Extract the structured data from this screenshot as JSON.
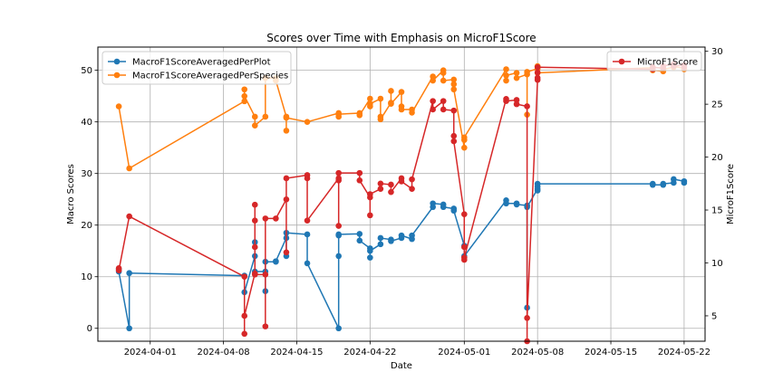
{
  "chart_data": {
    "type": "line",
    "title": "Scores over Time with Emphasis on MicroF1Score",
    "xlabel": "Date",
    "ylabel": "Macro Scores",
    "y2label": "MicroF1Score",
    "xlim": [
      "2024-03-27",
      "2024-05-24"
    ],
    "ylim": [
      -2.5,
      54.5
    ],
    "y2lim": [
      2.6,
      30.4
    ],
    "x_ticks": [
      "2024-04-01",
      "2024-04-08",
      "2024-04-15",
      "2024-04-22",
      "2024-05-01",
      "2024-05-08",
      "2024-05-15",
      "2024-05-22"
    ],
    "y_ticks": [
      0,
      10,
      20,
      30,
      40,
      50
    ],
    "y2_ticks": [
      5,
      10,
      15,
      20,
      25,
      30
    ],
    "grid": true,
    "legend_left": {
      "placement": "top-left",
      "entries": [
        "MacroF1ScoreAveragedPerPlot",
        "MacroF1ScoreAveragedPerSpecies"
      ]
    },
    "legend_right": {
      "placement": "top-right",
      "entries": [
        "MicroF1Score"
      ]
    },
    "series": [
      {
        "name": "MacroF1ScoreAveragedPerPlot",
        "axis": "left",
        "color": "#1f77b4",
        "points": [
          [
            "2024-03-29",
            11.5
          ],
          [
            "2024-03-29",
            11.0
          ],
          [
            "2024-03-30",
            0.0
          ],
          [
            "2024-03-30",
            10.7
          ],
          [
            "2024-04-10",
            10.2
          ],
          [
            "2024-04-10",
            7.0
          ],
          [
            "2024-04-11",
            14.0
          ],
          [
            "2024-04-11",
            16.7
          ],
          [
            "2024-04-11",
            11.0
          ],
          [
            "2024-04-12",
            11.0
          ],
          [
            "2024-04-12",
            7.2
          ],
          [
            "2024-04-12",
            12.9
          ],
          [
            "2024-04-13",
            12.9
          ],
          [
            "2024-04-13",
            13.0
          ],
          [
            "2024-04-14",
            17.5
          ],
          [
            "2024-04-14",
            14.0
          ],
          [
            "2024-04-14",
            18.5
          ],
          [
            "2024-04-16",
            18.2
          ],
          [
            "2024-04-16",
            12.6
          ],
          [
            "2024-04-19",
            0.0
          ],
          [
            "2024-04-19",
            18.0
          ],
          [
            "2024-04-19",
            14.0
          ],
          [
            "2024-04-19",
            18.2
          ],
          [
            "2024-04-21",
            18.3
          ],
          [
            "2024-04-21",
            17.0
          ],
          [
            "2024-04-22",
            15.5
          ],
          [
            "2024-04-22",
            13.7
          ],
          [
            "2024-04-22",
            15.0
          ],
          [
            "2024-04-23",
            16.3
          ],
          [
            "2024-04-23",
            17.5
          ],
          [
            "2024-04-24",
            17.2
          ],
          [
            "2024-04-24",
            16.9
          ],
          [
            "2024-04-25",
            17.5
          ],
          [
            "2024-04-25",
            18.0
          ],
          [
            "2024-04-26",
            17.3
          ],
          [
            "2024-04-26",
            18.0
          ],
          [
            "2024-04-28",
            23.5
          ],
          [
            "2024-04-28",
            24.2
          ],
          [
            "2024-04-29",
            24.0
          ],
          [
            "2024-04-29",
            23.5
          ],
          [
            "2024-04-30",
            23.2
          ],
          [
            "2024-04-30",
            22.8
          ],
          [
            "2024-05-01",
            16.0
          ],
          [
            "2024-05-01",
            14.0
          ],
          [
            "2024-05-05",
            24.8
          ],
          [
            "2024-05-05",
            24.2
          ],
          [
            "2024-05-06",
            24.2
          ],
          [
            "2024-05-06",
            24.0
          ],
          [
            "2024-05-07",
            23.8
          ],
          [
            "2024-05-07",
            4.0
          ],
          [
            "2024-05-07",
            23.5
          ],
          [
            "2024-05-08",
            27.0
          ],
          [
            "2024-05-08",
            26.7
          ],
          [
            "2024-05-08",
            27.5
          ],
          [
            "2024-05-08",
            28.0
          ],
          [
            "2024-05-19",
            28.0
          ],
          [
            "2024-05-19",
            27.8
          ],
          [
            "2024-05-20",
            27.8
          ],
          [
            "2024-05-20",
            28.0
          ],
          [
            "2024-05-21",
            28.2
          ],
          [
            "2024-05-21",
            28.9
          ],
          [
            "2024-05-22",
            28.5
          ],
          [
            "2024-05-22",
            28.2
          ]
        ]
      },
      {
        "name": "MacroF1ScoreAveragedPerSpecies",
        "axis": "left",
        "color": "#ff7f0e",
        "points": [
          [
            "2024-03-29",
            43.0
          ],
          [
            "2024-03-30",
            31.0
          ],
          [
            "2024-04-10",
            44.0
          ],
          [
            "2024-04-10",
            46.3
          ],
          [
            "2024-04-10",
            45.0
          ],
          [
            "2024-04-11",
            41.0
          ],
          [
            "2024-04-11",
            39.3
          ],
          [
            "2024-04-12",
            41.0
          ],
          [
            "2024-04-12",
            48.5
          ],
          [
            "2024-04-13",
            48.5
          ],
          [
            "2024-04-13",
            48.0
          ],
          [
            "2024-04-14",
            41.0
          ],
          [
            "2024-04-14",
            38.3
          ],
          [
            "2024-04-14",
            40.8
          ],
          [
            "2024-04-16",
            40.0
          ],
          [
            "2024-04-19",
            41.7
          ],
          [
            "2024-04-19",
            41.0
          ],
          [
            "2024-04-19",
            41.5
          ],
          [
            "2024-04-21",
            41.7
          ],
          [
            "2024-04-21",
            41.3
          ],
          [
            "2024-04-22",
            44.5
          ],
          [
            "2024-04-22",
            43.0
          ],
          [
            "2024-04-22",
            43.5
          ],
          [
            "2024-04-23",
            44.5
          ],
          [
            "2024-04-23",
            41.0
          ],
          [
            "2024-04-23",
            40.5
          ],
          [
            "2024-04-24",
            43.7
          ],
          [
            "2024-04-24",
            46.0
          ],
          [
            "2024-04-24",
            43.5
          ],
          [
            "2024-04-25",
            45.8
          ],
          [
            "2024-04-25",
            43.0
          ],
          [
            "2024-04-25",
            42.4
          ],
          [
            "2024-04-26",
            42.4
          ],
          [
            "2024-04-26",
            41.8
          ],
          [
            "2024-04-28",
            48.8
          ],
          [
            "2024-04-28",
            48.0
          ],
          [
            "2024-04-29",
            50.0
          ],
          [
            "2024-04-29",
            49.5
          ],
          [
            "2024-04-29",
            48.0
          ],
          [
            "2024-04-30",
            48.2
          ],
          [
            "2024-04-30",
            47.3
          ],
          [
            "2024-04-30",
            46.3
          ],
          [
            "2024-05-01",
            35.0
          ],
          [
            "2024-05-01",
            36.5
          ],
          [
            "2024-05-01",
            37.0
          ],
          [
            "2024-05-05",
            50.2
          ],
          [
            "2024-05-05",
            48.0
          ],
          [
            "2024-05-05",
            49.0
          ],
          [
            "2024-05-06",
            49.5
          ],
          [
            "2024-05-06",
            48.5
          ],
          [
            "2024-05-07",
            49.2
          ],
          [
            "2024-05-07",
            41.4
          ],
          [
            "2024-05-07",
            49.7
          ],
          [
            "2024-05-08",
            50.3
          ],
          [
            "2024-05-08",
            50.8
          ],
          [
            "2024-05-08",
            50.7
          ],
          [
            "2024-05-08",
            49.5
          ],
          [
            "2024-05-19",
            50.5
          ],
          [
            "2024-05-19",
            50.0
          ],
          [
            "2024-05-20",
            49.8
          ],
          [
            "2024-05-20",
            50.2
          ],
          [
            "2024-05-21",
            50.6
          ],
          [
            "2024-05-21",
            50.7
          ],
          [
            "2024-05-22",
            50.4
          ],
          [
            "2024-05-22",
            50.2
          ]
        ]
      },
      {
        "name": "MicroF1Score",
        "axis": "right",
        "color": "#d62728",
        "points": [
          [
            "2024-03-29",
            9.5
          ],
          [
            "2024-03-29",
            9.3
          ],
          [
            "2024-03-30",
            14.4
          ],
          [
            "2024-04-10",
            8.7
          ],
          [
            "2024-04-10",
            3.3
          ],
          [
            "2024-04-10",
            5.0
          ],
          [
            "2024-04-11",
            9.0
          ],
          [
            "2024-04-11",
            14.0
          ],
          [
            "2024-04-11",
            15.5
          ],
          [
            "2024-04-11",
            11.5
          ],
          [
            "2024-04-11",
            8.9
          ],
          [
            "2024-04-12",
            8.9
          ],
          [
            "2024-04-12",
            4.0
          ],
          [
            "2024-04-12",
            14.2
          ],
          [
            "2024-04-13",
            14.2
          ],
          [
            "2024-04-14",
            16.0
          ],
          [
            "2024-04-14",
            11.0
          ],
          [
            "2024-04-14",
            18.0
          ],
          [
            "2024-04-16",
            18.3
          ],
          [
            "2024-04-16",
            18.0
          ],
          [
            "2024-04-16",
            14.0
          ],
          [
            "2024-04-19",
            18.0
          ],
          [
            "2024-04-19",
            17.8
          ],
          [
            "2024-04-19",
            13.5
          ],
          [
            "2024-04-19",
            18.5
          ],
          [
            "2024-04-21",
            18.5
          ],
          [
            "2024-04-21",
            17.8
          ],
          [
            "2024-04-22",
            16.2
          ],
          [
            "2024-04-22",
            14.5
          ],
          [
            "2024-04-22",
            16.5
          ],
          [
            "2024-04-23",
            17.0
          ],
          [
            "2024-04-23",
            17.5
          ],
          [
            "2024-04-24",
            17.4
          ],
          [
            "2024-04-24",
            16.7
          ],
          [
            "2024-04-25",
            18.0
          ],
          [
            "2024-04-25",
            17.7
          ],
          [
            "2024-04-26",
            17.0
          ],
          [
            "2024-04-26",
            17.9
          ],
          [
            "2024-04-28",
            25.3
          ],
          [
            "2024-04-28",
            24.5
          ],
          [
            "2024-04-29",
            25.3
          ],
          [
            "2024-04-29",
            24.5
          ],
          [
            "2024-04-30",
            24.4
          ],
          [
            "2024-04-30",
            22.0
          ],
          [
            "2024-04-30",
            21.5
          ],
          [
            "2024-05-01",
            14.6
          ],
          [
            "2024-05-01",
            11.5
          ],
          [
            "2024-05-01",
            10.3
          ],
          [
            "2024-05-01",
            10.5
          ],
          [
            "2024-05-05",
            25.5
          ],
          [
            "2024-05-05",
            25.3
          ],
          [
            "2024-05-06",
            25.4
          ],
          [
            "2024-05-06",
            25.0
          ],
          [
            "2024-05-07",
            24.8
          ],
          [
            "2024-05-07",
            2.6
          ],
          [
            "2024-05-07",
            4.8
          ],
          [
            "2024-05-08",
            27.3
          ],
          [
            "2024-05-08",
            27.5
          ],
          [
            "2024-05-08",
            28.0
          ],
          [
            "2024-05-08",
            28.5
          ],
          [
            "2024-05-19",
            28.3
          ],
          [
            "2024-05-19",
            28.5
          ],
          [
            "2024-05-20",
            28.4
          ],
          [
            "2024-05-20",
            28.6
          ],
          [
            "2024-05-21",
            28.8
          ],
          [
            "2024-05-21",
            28.6
          ],
          [
            "2024-05-22",
            28.7
          ],
          [
            "2024-05-22",
            28.5
          ]
        ]
      }
    ]
  }
}
